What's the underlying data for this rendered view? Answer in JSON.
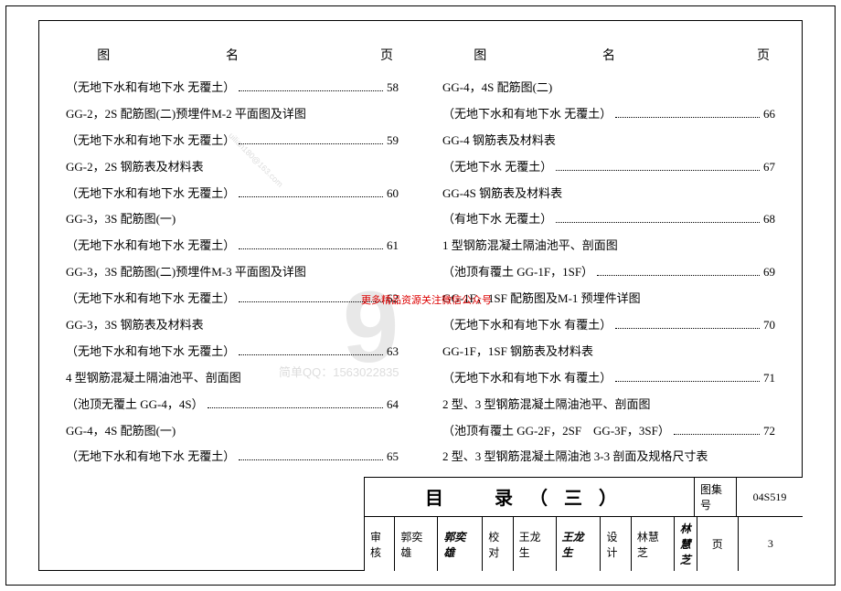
{
  "headers": {
    "col1": "图",
    "col2": "名",
    "col3": "页"
  },
  "left_column": [
    {
      "label": "（无地下水和有地下水  无覆土）",
      "page": "58"
    },
    {
      "label": "GG-2，2S 配筋图(二)预埋件M-2 平面图及详图",
      "page": ""
    },
    {
      "label": "（无地下水和有地下水  无覆土）",
      "page": "59"
    },
    {
      "label": "GG-2，2S 钢筋表及材料表",
      "page": ""
    },
    {
      "label": "（无地下水和有地下水  无覆土）",
      "page": "60"
    },
    {
      "label": "GG-3，3S 配筋图(一)",
      "page": ""
    },
    {
      "label": "（无地下水和有地下水  无覆土）",
      "page": "61"
    },
    {
      "label": "GG-3，3S 配筋图(二)预埋件M-3 平面图及详图",
      "page": ""
    },
    {
      "label": "（无地下水和有地下水  无覆土）",
      "page": "62"
    },
    {
      "label": "GG-3，3S 钢筋表及材料表",
      "page": ""
    },
    {
      "label": "（无地下水和有地下水  无覆土）",
      "page": "63"
    },
    {
      "label": "4 型钢筋混凝土隔油池平、剖面图",
      "page": ""
    },
    {
      "label": "（池顶无覆土 GG-4，4S）",
      "page": "64"
    },
    {
      "label": "GG-4，4S 配筋图(一)",
      "page": ""
    },
    {
      "label": "（无地下水和有地下水  无覆土）",
      "page": "65"
    }
  ],
  "right_column": [
    {
      "label": "GG-4，4S 配筋图(二)",
      "page": ""
    },
    {
      "label": "（无地下水和有地下水  无覆土）",
      "page": "66"
    },
    {
      "label": "GG-4 钢筋表及材料表",
      "page": ""
    },
    {
      "label": "（无地下水  无覆土）",
      "page": "67"
    },
    {
      "label": "GG-4S 钢筋表及材料表",
      "page": ""
    },
    {
      "label": "（有地下水  无覆土）",
      "page": "68"
    },
    {
      "label": "1 型钢筋混凝土隔油池平、剖面图",
      "page": ""
    },
    {
      "label": "（池顶有覆土 GG-1F，1SF）",
      "page": "69"
    },
    {
      "label": "GG-1F，1SF 配筋图及M-1 预埋件详图",
      "page": ""
    },
    {
      "label": "（无地下水和有地下水  有覆土）",
      "page": "70"
    },
    {
      "label": "GG-1F，1SF 钢筋表及材料表",
      "page": ""
    },
    {
      "label": "（无地下水和有地下水  有覆土）",
      "page": "71"
    },
    {
      "label": "2 型、3 型钢筋混凝土隔油池平、剖面图",
      "page": ""
    },
    {
      "label": "（池顶有覆土 GG-2F，2SF　GG-3F，3SF）",
      "page": "72"
    },
    {
      "label": "2 型、3 型钢筋混凝土隔油池 3-3 剖面及规格尺寸表",
      "page": ""
    }
  ],
  "title_block": {
    "title": "目　录（三）",
    "tuji_label": "图集号",
    "tuji_value": "04S519",
    "shenhe_label": "审核",
    "shenhe_name": "郭奕雄",
    "shenhe_sig": "郭奕雄",
    "jiaodui_label": "校对",
    "jiaodui_name": "王龙生",
    "jiaodui_sig": "王龙生",
    "sheji_label": "设计",
    "sheji_name": "林慧芝",
    "sheji_sig": "林慧芝",
    "ye_label": "页",
    "ye_value": "3"
  },
  "watermark_red": "更多精品资源关注微信公众号",
  "watermark_grey_num": "9",
  "watermark_grey_qq": "简单QQ：1563022835",
  "colors": {
    "text": "#000000",
    "watermark_red": "#dd0000",
    "watermark_grey": "#dddddd"
  }
}
